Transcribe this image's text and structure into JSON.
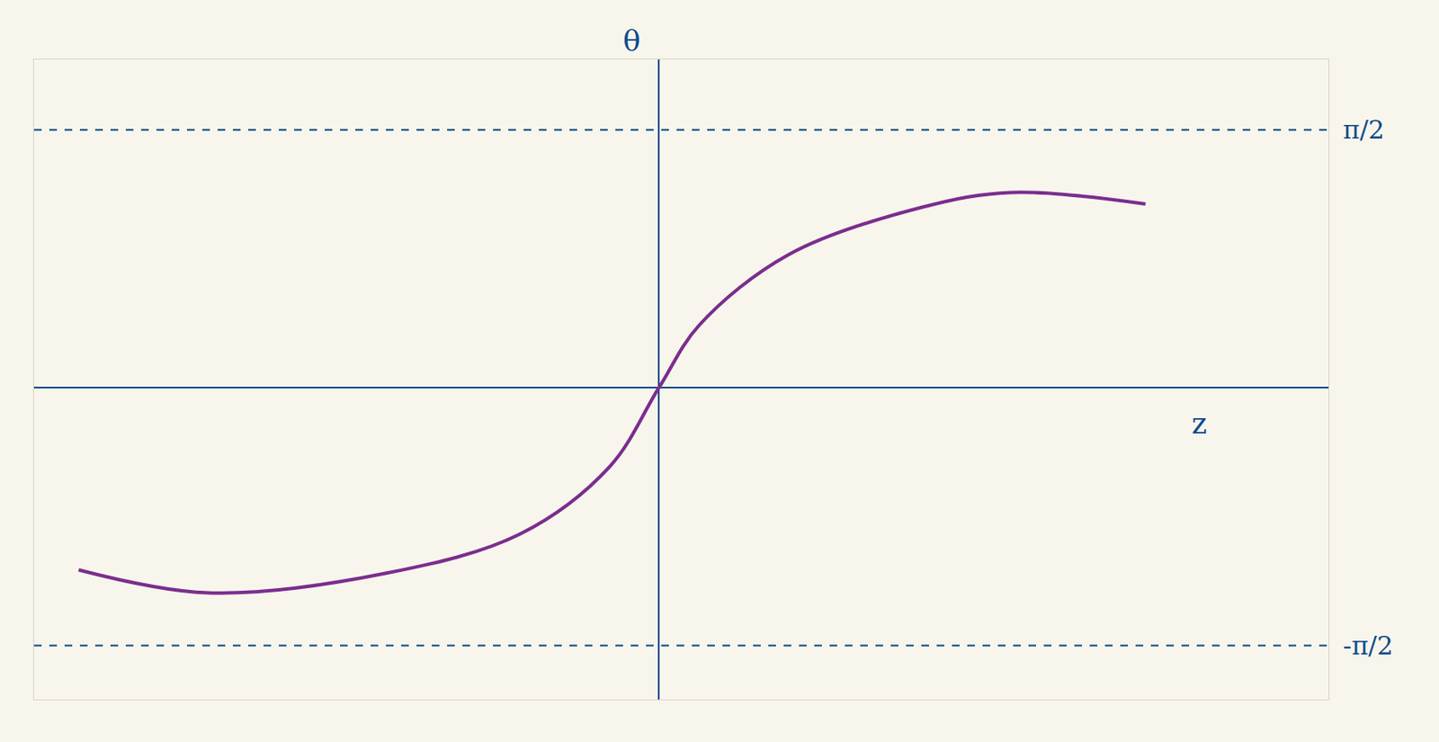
{
  "chart_data": {
    "type": "line",
    "x_label": "z",
    "y_label": "θ",
    "x": [
      -6.5,
      -5.05,
      -3.05,
      -1.55,
      -0.55,
      0,
      0.45,
      1.45,
      2.95,
      3.95,
      5.45
    ],
    "values": [
      -1.11,
      -1.25,
      -1.13,
      -0.89,
      -0.48,
      0,
      0.38,
      0.81,
      1.1,
      1.19,
      1.12
    ],
    "color": "#7b2d8e",
    "asymptotes": [
      {
        "value": 1.5708,
        "label": "π/2"
      },
      {
        "value": -1.5708,
        "label": "-π/2"
      }
    ],
    "xlim": [
      -7,
      7.5
    ],
    "ylim": [
      -1.9,
      2.0
    ],
    "tick_labels": false,
    "grid": false
  }
}
